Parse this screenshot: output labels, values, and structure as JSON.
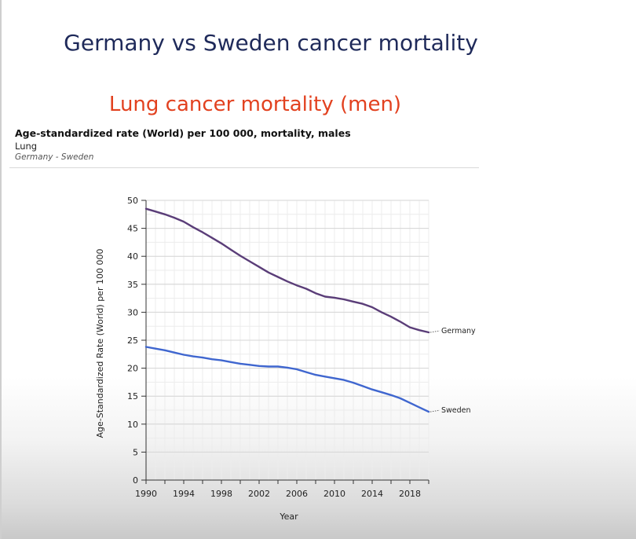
{
  "slide": {
    "title": "Germany vs Sweden cancer mortality",
    "chart_title": "Lung cancer mortality (men)"
  },
  "header": {
    "metric": "Age-standardized rate (World) per 100 000, mortality, males",
    "cancer": "Lung",
    "countries": "Germany - Sweden"
  },
  "colors": {
    "germany": "#5a3d78",
    "sweden": "#3f66cf",
    "slide_title": "#1f2a5a",
    "chart_title": "#e2411f"
  },
  "chart_data": {
    "type": "line",
    "title": "Age-standardized rate (World) per 100 000, mortality, males",
    "subtitle": "Lung",
    "xlabel": "Year",
    "ylabel": "Age-Standardized Rate (World) per 100 000",
    "xlim": [
      1990,
      2020
    ],
    "ylim": [
      0,
      50
    ],
    "x_ticks": [
      1990,
      1994,
      1998,
      2002,
      2006,
      2010,
      2014,
      2018
    ],
    "y_ticks": [
      0,
      5,
      10,
      15,
      20,
      25,
      30,
      35,
      40,
      45,
      50
    ],
    "grid": true,
    "x": [
      1990,
      1991,
      1992,
      1993,
      1994,
      1995,
      1996,
      1997,
      1998,
      1999,
      2000,
      2001,
      2002,
      2003,
      2004,
      2005,
      2006,
      2007,
      2008,
      2009,
      2010,
      2011,
      2012,
      2013,
      2014,
      2015,
      2016,
      2017,
      2018,
      2019,
      2020
    ],
    "series": [
      {
        "name": "Germany",
        "values": [
          48.5,
          48.0,
          47.5,
          46.9,
          46.2,
          45.2,
          44.3,
          43.3,
          42.3,
          41.2,
          40.1,
          39.1,
          38.1,
          37.1,
          36.3,
          35.5,
          34.8,
          34.2,
          33.4,
          32.8,
          32.6,
          32.3,
          31.9,
          31.5,
          30.9,
          30.0,
          29.2,
          28.3,
          27.3,
          26.8,
          26.4
        ]
      },
      {
        "name": "Sweden",
        "values": [
          23.8,
          23.5,
          23.2,
          22.8,
          22.4,
          22.1,
          21.9,
          21.6,
          21.4,
          21.1,
          20.8,
          20.6,
          20.4,
          20.3,
          20.3,
          20.1,
          19.8,
          19.3,
          18.8,
          18.5,
          18.2,
          17.9,
          17.4,
          16.8,
          16.2,
          15.7,
          15.2,
          14.6,
          13.8,
          13.0,
          12.2
        ]
      }
    ]
  }
}
